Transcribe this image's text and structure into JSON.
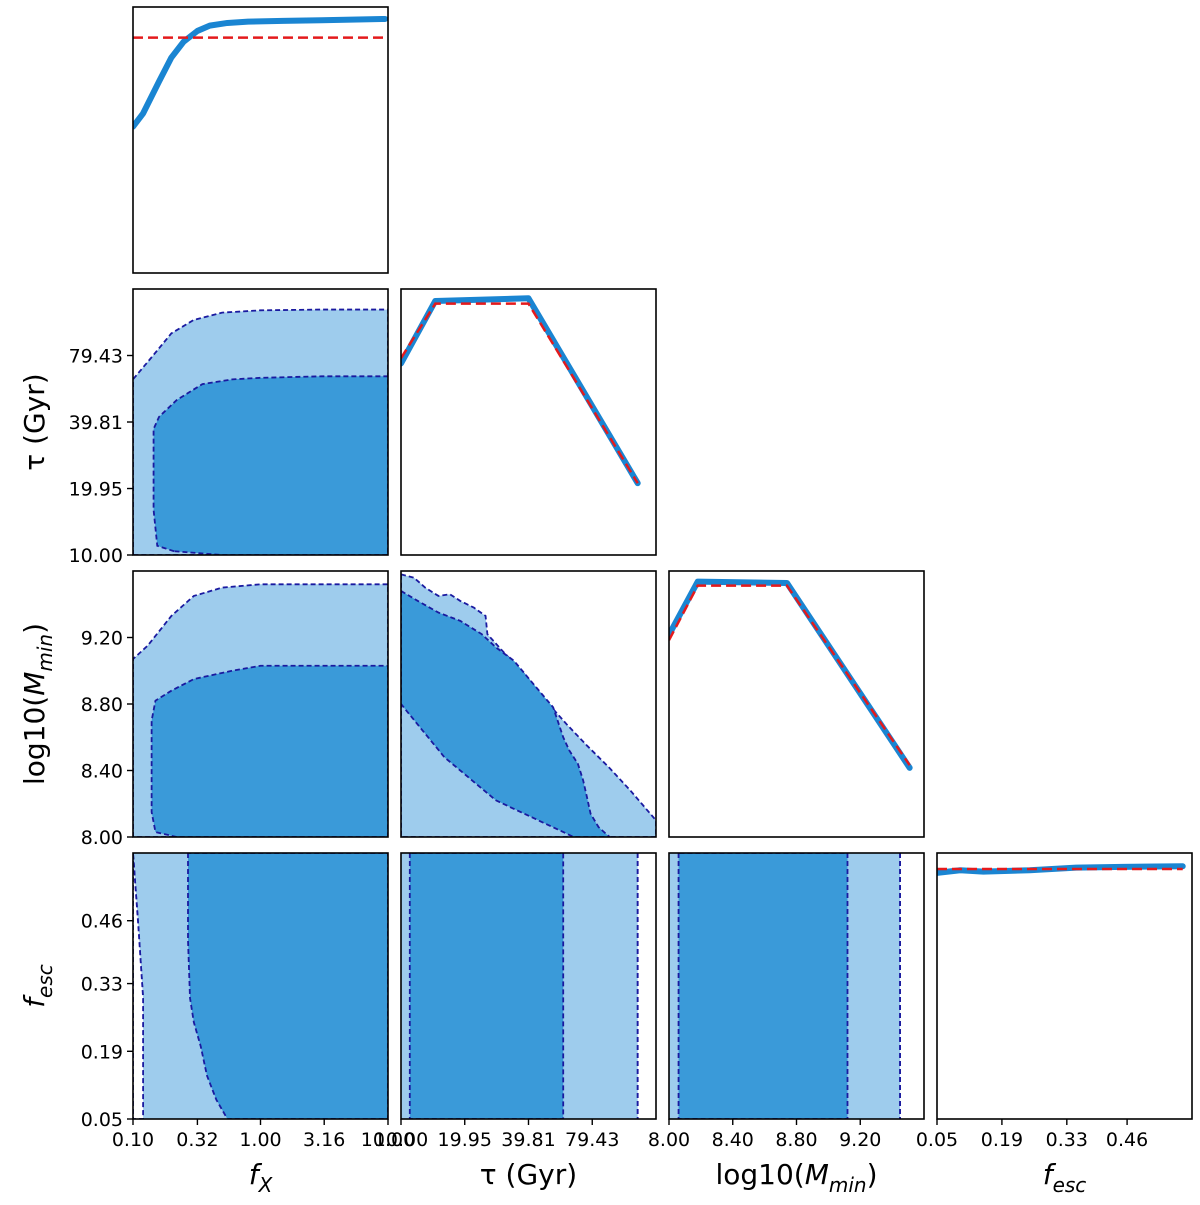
{
  "colors": {
    "inner_region": "#3a9ad9",
    "outer_region": "#9ecced",
    "contour_line": "#1a1aa0",
    "marginal_line": "#1a85d2",
    "reference_line": "#e41a1c",
    "frame": "#000000"
  },
  "chart_data": {
    "type": "corner",
    "parameters": [
      {
        "key": "fX",
        "label": {
          "base": "f",
          "sub": "X",
          "suffix": ""
        },
        "ticks": [
          "0.10",
          "0.32",
          "1.00",
          "3.16",
          "10.00"
        ],
        "tick_values": [
          0.1,
          0.32,
          1.0,
          3.16,
          10.0
        ],
        "range": [
          0.1,
          10.0
        ],
        "scale": "log"
      },
      {
        "key": "tau",
        "label": {
          "base": "τ (Gyr)",
          "sub": "",
          "suffix": ""
        },
        "ticks": [
          "10.00",
          "19.95",
          "39.81",
          "79.43"
        ],
        "tick_values": [
          10.0,
          19.95,
          39.81,
          79.43
        ],
        "range": [
          10.0,
          158.5
        ],
        "scale": "log"
      },
      {
        "key": "logMmin",
        "label": {
          "base": "log10(M",
          "sub": "min",
          "suffix": ")"
        },
        "ticks": [
          "8.00",
          "8.40",
          "8.80",
          "9.20"
        ],
        "tick_values": [
          8.0,
          8.4,
          8.8,
          9.2
        ],
        "range": [
          8.0,
          9.6
        ],
        "scale": "linear"
      },
      {
        "key": "fesc",
        "label": {
          "base": "f",
          "sub": "esc",
          "suffix": ""
        },
        "ticks": [
          "0.05",
          "0.19",
          "0.33",
          "0.46"
        ],
        "tick_values": [
          0.05,
          0.19,
          0.33,
          0.46
        ],
        "range": [
          0.05,
          0.6
        ],
        "scale": "linear"
      }
    ],
    "marginals": [
      {
        "param": "fX",
        "line": [
          [
            0.1,
            0.55
          ],
          [
            0.12,
            0.6
          ],
          [
            0.16,
            0.72
          ],
          [
            0.2,
            0.81
          ],
          [
            0.25,
            0.87
          ],
          [
            0.32,
            0.91
          ],
          [
            0.4,
            0.93
          ],
          [
            0.55,
            0.94
          ],
          [
            0.8,
            0.945
          ],
          [
            1.5,
            0.948
          ],
          [
            3.0,
            0.95
          ],
          [
            9.5,
            0.955
          ]
        ],
        "reference": [
          [
            0.1,
            0.885
          ],
          [
            9.5,
            0.885
          ]
        ]
      },
      {
        "param": "tau",
        "line": [
          [
            10.0,
            0.72
          ],
          [
            14.5,
            0.955
          ],
          [
            39.8,
            0.965
          ],
          [
            130.0,
            0.27
          ]
        ],
        "reference": [
          [
            10.0,
            0.74
          ],
          [
            14.5,
            0.945
          ],
          [
            39.8,
            0.945
          ],
          [
            130.0,
            0.27
          ]
        ]
      },
      {
        "param": "logMmin",
        "line": [
          [
            8.0,
            0.76
          ],
          [
            8.18,
            0.96
          ],
          [
            8.74,
            0.955
          ],
          [
            9.51,
            0.26
          ]
        ],
        "reference": [
          [
            8.0,
            0.74
          ],
          [
            8.18,
            0.945
          ],
          [
            8.74,
            0.945
          ],
          [
            9.51,
            0.27
          ]
        ]
      },
      {
        "param": "fesc",
        "line": [
          [
            0.05,
            0.925
          ],
          [
            0.1,
            0.935
          ],
          [
            0.15,
            0.93
          ],
          [
            0.25,
            0.935
          ],
          [
            0.35,
            0.945
          ],
          [
            0.45,
            0.948
          ],
          [
            0.58,
            0.95
          ]
        ],
        "reference": [
          [
            0.05,
            0.94
          ],
          [
            0.58,
            0.94
          ]
        ]
      }
    ],
    "panels": [
      {
        "x": "fX",
        "y": "tau",
        "outer": [
          [
            0.1,
            10.0
          ],
          [
            0.1,
            62.0
          ],
          [
            0.14,
            78.0
          ],
          [
            0.2,
            100.0
          ],
          [
            0.3,
            115.0
          ],
          [
            0.5,
            124.0
          ],
          [
            1.0,
            127.0
          ],
          [
            3.0,
            128.0
          ],
          [
            10.0,
            128.0
          ],
          [
            10.0,
            10.0
          ]
        ],
        "inner": [
          [
            0.21,
            10.4
          ],
          [
            0.155,
            11.0
          ],
          [
            0.145,
            16.0
          ],
          [
            0.145,
            37.0
          ],
          [
            0.16,
            42.0
          ],
          [
            0.22,
            50.0
          ],
          [
            0.35,
            59.0
          ],
          [
            0.6,
            62.0
          ],
          [
            1.0,
            63.0
          ],
          [
            3.0,
            64.0
          ],
          [
            10.0,
            64.0
          ],
          [
            10.0,
            10.0
          ],
          [
            0.5,
            10.0
          ]
        ]
      },
      {
        "x": "tau",
        "y": "logMmin",
        "outer": [
          [
            10.0,
            9.58
          ],
          [
            11.5,
            9.56
          ],
          [
            13.0,
            9.5
          ],
          [
            15.0,
            9.45
          ],
          [
            17.0,
            9.46
          ],
          [
            19.0,
            9.42
          ],
          [
            22.0,
            9.38
          ],
          [
            25.0,
            9.33
          ],
          [
            25.5,
            9.22
          ],
          [
            30.0,
            9.12
          ],
          [
            38.0,
            8.98
          ],
          [
            48.0,
            8.82
          ],
          [
            60.0,
            8.68
          ],
          [
            75.0,
            8.55
          ],
          [
            95.0,
            8.42
          ],
          [
            120.0,
            8.28
          ],
          [
            158.5,
            8.1
          ],
          [
            158.5,
            8.0
          ],
          [
            100.0,
            8.0
          ],
          [
            10.0,
            8.0
          ]
        ],
        "inner": [
          [
            10.0,
            9.48
          ],
          [
            12.0,
            9.42
          ],
          [
            15.0,
            9.35
          ],
          [
            19.0,
            9.3
          ],
          [
            24.0,
            9.22
          ],
          [
            28.0,
            9.14
          ],
          [
            34.0,
            9.06
          ],
          [
            42.0,
            8.92
          ],
          [
            52.0,
            8.78
          ],
          [
            58.0,
            8.6
          ],
          [
            62.0,
            8.52
          ],
          [
            68.0,
            8.44
          ],
          [
            72.0,
            8.34
          ],
          [
            75.0,
            8.24
          ],
          [
            78.0,
            8.14
          ],
          [
            85.0,
            8.06
          ],
          [
            92.0,
            8.02
          ],
          [
            96.0,
            8.0
          ],
          [
            65.0,
            8.0
          ],
          [
            28.0,
            8.22
          ],
          [
            16.0,
            8.48
          ],
          [
            10.0,
            8.8
          ]
        ]
      },
      {
        "x": "fX",
        "y": "logMmin",
        "outer": [
          [
            0.1,
            8.0
          ],
          [
            0.1,
            9.07
          ],
          [
            0.13,
            9.15
          ],
          [
            0.2,
            9.33
          ],
          [
            0.3,
            9.45
          ],
          [
            0.5,
            9.5
          ],
          [
            1.0,
            9.52
          ],
          [
            3.0,
            9.52
          ],
          [
            10.0,
            9.52
          ],
          [
            10.0,
            8.0
          ]
        ],
        "inner": [
          [
            0.22,
            8.0
          ],
          [
            0.15,
            8.03
          ],
          [
            0.14,
            8.15
          ],
          [
            0.14,
            8.7
          ],
          [
            0.15,
            8.82
          ],
          [
            0.2,
            8.88
          ],
          [
            0.3,
            8.95
          ],
          [
            0.6,
            9.0
          ],
          [
            1.0,
            9.03
          ],
          [
            3.0,
            9.03
          ],
          [
            10.0,
            9.03
          ],
          [
            10.0,
            8.0
          ],
          [
            0.5,
            8.0
          ]
        ]
      },
      {
        "x": "fX",
        "y": "fesc",
        "outer": [
          [
            0.1,
            0.6
          ],
          [
            0.1,
            0.05
          ],
          [
            0.12,
            0.05
          ],
          [
            0.12,
            0.3
          ],
          [
            0.11,
            0.45
          ],
          [
            0.1,
            0.6
          ]
        ],
        "outer_fill": [
          [
            0.1,
            0.05
          ],
          [
            10.0,
            0.05
          ],
          [
            10.0,
            0.6
          ],
          [
            0.1,
            0.6
          ]
        ],
        "inner": [
          [
            0.27,
            0.6
          ],
          [
            0.27,
            0.42
          ],
          [
            0.28,
            0.3
          ],
          [
            0.3,
            0.25
          ],
          [
            0.34,
            0.2
          ],
          [
            0.38,
            0.14
          ],
          [
            0.45,
            0.09
          ],
          [
            0.55,
            0.05
          ],
          [
            10.0,
            0.05
          ],
          [
            10.0,
            0.6
          ]
        ]
      },
      {
        "x": "tau",
        "y": "fesc",
        "outer_fill": [
          [
            10.0,
            0.05
          ],
          [
            158.5,
            0.05
          ],
          [
            158.5,
            0.6
          ],
          [
            10.0,
            0.6
          ]
        ],
        "inner": [
          [
            11.0,
            0.6
          ],
          [
            11.0,
            0.05
          ],
          [
            58.0,
            0.05
          ],
          [
            58.0,
            0.6
          ]
        ],
        "outer": [
          [
            130.0,
            0.6
          ],
          [
            130.0,
            0.05
          ]
        ]
      },
      {
        "x": "logMmin",
        "y": "fesc",
        "outer_fill": [
          [
            8.0,
            0.05
          ],
          [
            9.6,
            0.05
          ],
          [
            9.6,
            0.6
          ],
          [
            8.0,
            0.6
          ]
        ],
        "inner": [
          [
            8.06,
            0.6
          ],
          [
            8.06,
            0.05
          ],
          [
            9.12,
            0.05
          ],
          [
            9.12,
            0.6
          ]
        ],
        "outer": [
          [
            9.45,
            0.6
          ],
          [
            9.45,
            0.05
          ]
        ]
      }
    ]
  }
}
